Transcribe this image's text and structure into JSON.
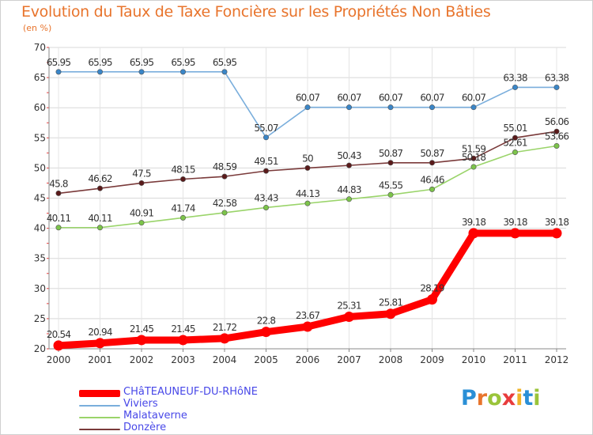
{
  "title": "Evolution du Taux de Taxe Foncière sur les Propriétés Non Bâties",
  "unit_label": "(en %)",
  "brand": {
    "text": "Proxiti",
    "letter_colors": [
      "#2a8fd6",
      "#e8742c",
      "#9ac43a",
      "#e83c3c",
      "#f0b428",
      "#2a8fd6",
      "#9ac43a"
    ]
  },
  "chart_data": {
    "type": "line",
    "title": "Evolution du Taux de Taxe Foncière sur les Propriétés Non Bâties",
    "ylabel": "(en %)",
    "xlabel": "",
    "ylim": [
      20,
      70
    ],
    "yticks": [
      20,
      25,
      30,
      35,
      40,
      45,
      50,
      55,
      60,
      65,
      70
    ],
    "grid": true,
    "legend_position": "bottom-left",
    "x": [
      "2000",
      "2001",
      "2002",
      "2003",
      "2004",
      "2005",
      "2006",
      "2007",
      "2008",
      "2009",
      "2010",
      "2011",
      "2012"
    ],
    "series": [
      {
        "name": "CHâTEAUNEUF-DU-RHôNE",
        "color": "#ff0000",
        "marker_color": "#ff0000",
        "bold": true,
        "values": [
          20.54,
          20.94,
          21.45,
          21.45,
          21.72,
          22.8,
          23.67,
          25.31,
          25.81,
          28.19,
          39.18,
          39.18,
          39.18
        ],
        "labels": [
          "20.54",
          "20.94",
          "21.45",
          "21.45",
          "21.72",
          "22.8",
          "23.67",
          "25.31",
          "25.81",
          "28.19",
          "39.18",
          "39.18",
          "39.18"
        ]
      },
      {
        "name": "Viviers",
        "color": "#7aaedc",
        "marker_color": "#3a86c8",
        "bold": false,
        "values": [
          65.95,
          65.95,
          65.95,
          65.95,
          65.95,
          55.07,
          60.07,
          60.07,
          60.07,
          60.07,
          60.07,
          63.38,
          63.38
        ],
        "labels": [
          "65.95",
          "65.95",
          "65.95",
          "65.95",
          "65.95",
          "55.07",
          "60.07",
          "60.07",
          "60.07",
          "60.07",
          "60.07",
          "63.38",
          "63.38"
        ]
      },
      {
        "name": "Malataverne",
        "color": "#9ad46a",
        "marker_color": "#7cc44a",
        "bold": false,
        "values": [
          40.11,
          40.11,
          40.91,
          41.74,
          42.58,
          43.43,
          44.13,
          44.83,
          45.55,
          46.46,
          50.18,
          52.61,
          53.66
        ],
        "labels": [
          "40.11",
          "40.11",
          "40.91",
          "41.74",
          "42.58",
          "43.43",
          "44.13",
          "44.83",
          "45.55",
          "46.46",
          "50.18",
          "52.61",
          "53.66"
        ]
      },
      {
        "name": "Donzère",
        "color": "#7a3a3a",
        "marker_color": "#5a1a1a",
        "bold": false,
        "values": [
          45.8,
          46.62,
          47.5,
          48.15,
          48.59,
          49.51,
          50,
          50.43,
          50.87,
          50.87,
          51.59,
          55.01,
          56.06
        ],
        "labels": [
          "45.8",
          "46.62",
          "47.5",
          "48.15",
          "48.59",
          "49.51",
          "50",
          "50.43",
          "50.87",
          "50.87",
          "51.59",
          "55.01",
          "56.06"
        ]
      }
    ]
  }
}
